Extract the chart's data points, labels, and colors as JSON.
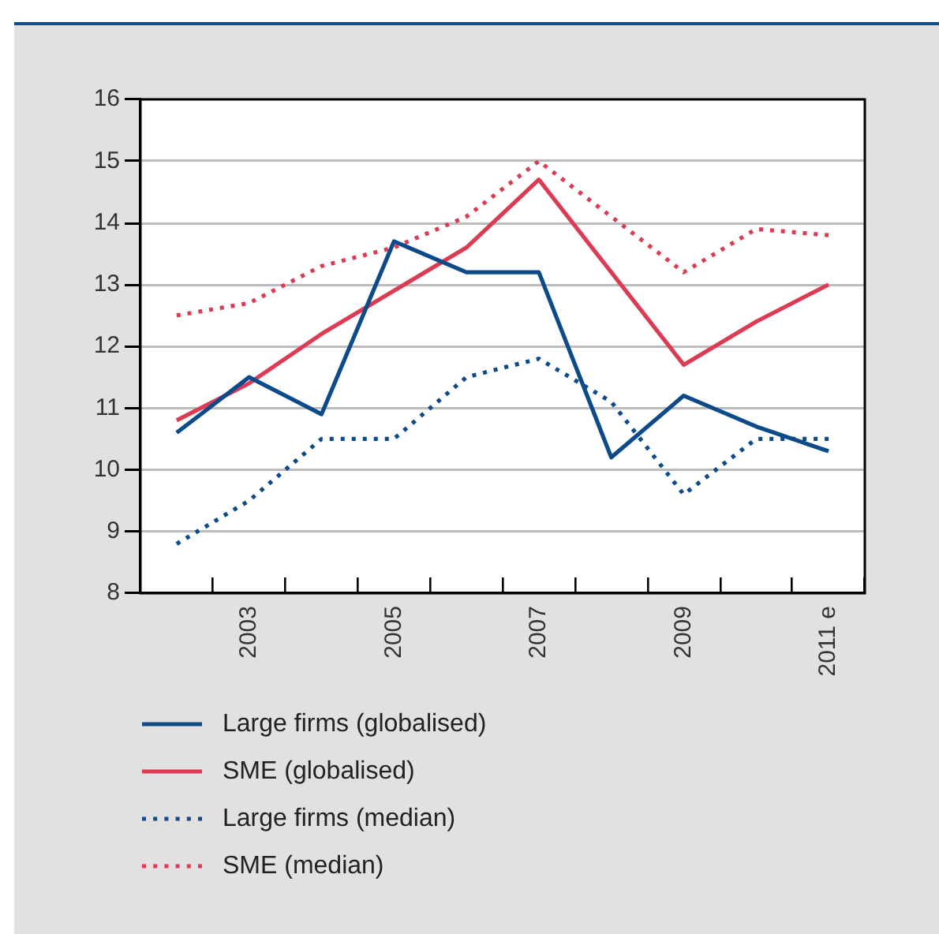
{
  "chart_data": {
    "type": "line",
    "categories": [
      null,
      "2003",
      null,
      "2005",
      null,
      "2007",
      null,
      "2009",
      null,
      "2011 e"
    ],
    "ylim": [
      8,
      16
    ],
    "yticks": [
      8,
      9,
      10,
      11,
      12,
      13,
      14,
      15,
      16
    ],
    "grid": "y",
    "legend": "bottom",
    "marker": "none",
    "series": [
      {
        "name": "Large firms (globalised)",
        "color": "#0c4a8a",
        "line_style": "solid",
        "values": [
          10.6,
          11.5,
          10.9,
          13.7,
          13.2,
          13.2,
          10.2,
          11.2,
          10.7,
          10.3
        ]
      },
      {
        "name": "SME (globalised)",
        "color": "#dc3b54",
        "line_style": "solid",
        "values": [
          10.8,
          11.4,
          12.2,
          12.9,
          13.6,
          14.7,
          13.2,
          11.7,
          12.4,
          13
        ]
      },
      {
        "name": "Large firms (median)",
        "color": "#0c4a8a",
        "line_style": "dotted",
        "values": [
          8.8,
          9.5,
          10.5,
          10.5,
          11.5,
          11.8,
          11.1,
          9.6,
          10.5,
          10.5
        ]
      },
      {
        "name": "SME (median)",
        "color": "#dc3b54",
        "line_style": "dotted",
        "values": [
          12.5,
          12.7,
          13.3,
          13.6,
          14.1,
          15,
          14.1,
          13.2,
          13.9,
          13.8
        ]
      }
    ]
  }
}
